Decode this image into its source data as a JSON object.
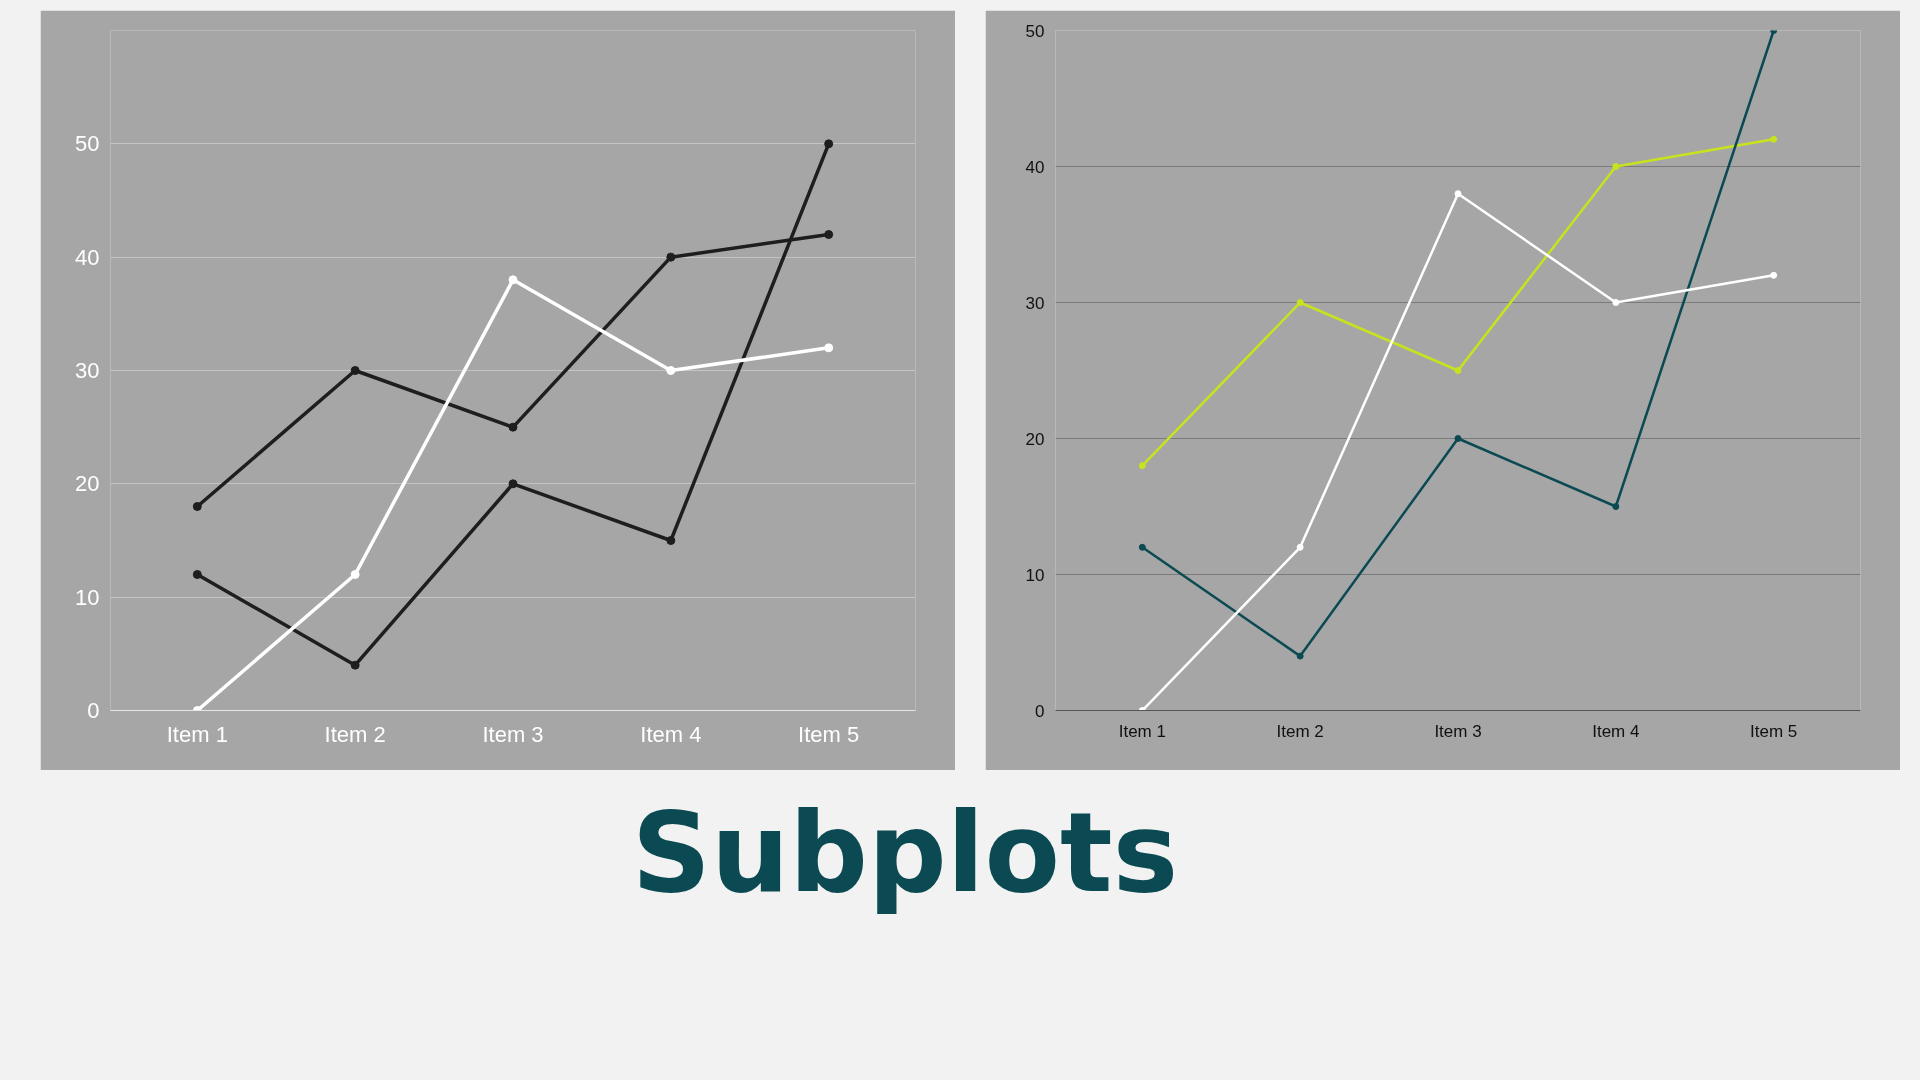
{
  "chart_data": [
    {
      "type": "line",
      "categories": [
        "Item 1",
        "Item 2",
        "Item 3",
        "Item 4",
        "Item 5"
      ],
      "ylim": [
        0,
        60
      ],
      "yticks": [
        0,
        10,
        20,
        30,
        40,
        50
      ],
      "grid": "y",
      "marker": "circle",
      "line_style": "solid",
      "series": [
        {
          "color": "#1e1e1e",
          "values": [
            18,
            30,
            25,
            40,
            42
          ]
        },
        {
          "color": "#1e1e1e",
          "values": [
            12,
            4,
            20,
            15,
            50
          ]
        },
        {
          "color": "#ffffff",
          "values": [
            0,
            12,
            38,
            30,
            32
          ]
        }
      ],
      "annotations": [
        "Subplots"
      ]
    },
    {
      "type": "line",
      "categories": [
        "Item 1",
        "Item 2",
        "Item 3",
        "Item 4",
        "Item 5"
      ],
      "ylim": [
        0,
        50
      ],
      "yticks": [
        0,
        10,
        20,
        30,
        40,
        50
      ],
      "grid": "y",
      "marker": "circle",
      "line_style": "solid",
      "series": [
        {
          "color": "#c8e31e",
          "values": [
            18,
            30,
            25,
            40,
            42
          ]
        },
        {
          "color": "#0b4a52",
          "values": [
            12,
            4,
            20,
            15,
            50
          ]
        },
        {
          "color": "#ffffff",
          "values": [
            0,
            12,
            38,
            30,
            32
          ]
        }
      ]
    }
  ]
}
